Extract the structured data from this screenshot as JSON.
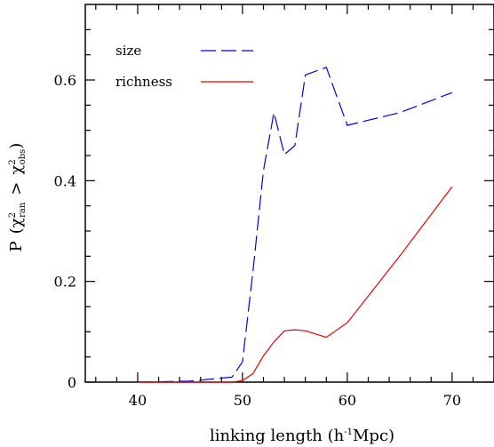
{
  "chart_data": {
    "type": "line",
    "xlabel": {
      "main": "linking length (h",
      "sup": "-1",
      "tail": "Mpc)"
    },
    "ylabel": {
      "p": "P",
      "open": "(",
      "chi": "χ",
      "sup": "2",
      "sub_ran": "ran",
      "gt": ">",
      "sub_obs": "obs",
      "close": ")"
    },
    "xlim": [
      35,
      74
    ],
    "ylim": [
      0,
      0.75
    ],
    "xticks": [
      {
        "value": 40,
        "label": "40"
      },
      {
        "value": 50,
        "label": "50"
      },
      {
        "value": 60,
        "label": "60"
      },
      {
        "value": 70,
        "label": "70"
      }
    ],
    "yticks": [
      {
        "value": 0,
        "label": "0"
      },
      {
        "value": 0.2,
        "label": "0.2"
      },
      {
        "value": 0.4,
        "label": "0.4"
      },
      {
        "value": 0.6,
        "label": "0.6"
      }
    ],
    "legend_position": "top-left",
    "series": [
      {
        "name": "size",
        "color": "#0000ee",
        "dash": "dashed",
        "points": [
          [
            40,
            0.0
          ],
          [
            45,
            0.002
          ],
          [
            49,
            0.01
          ],
          [
            50,
            0.04
          ],
          [
            51,
            0.22
          ],
          [
            52,
            0.42
          ],
          [
            53,
            0.535
          ],
          [
            54,
            0.452
          ],
          [
            55,
            0.47
          ],
          [
            56,
            0.61
          ],
          [
            58,
            0.625
          ],
          [
            60,
            0.51
          ],
          [
            65,
            0.535
          ],
          [
            70,
            0.575
          ]
        ]
      },
      {
        "name": "richness",
        "color": "#ee0000",
        "dash": "solid",
        "points": [
          [
            40,
            0.0
          ],
          [
            45,
            0.0
          ],
          [
            49,
            0.0
          ],
          [
            50,
            0.003
          ],
          [
            51,
            0.017
          ],
          [
            52,
            0.052
          ],
          [
            53,
            0.08
          ],
          [
            54,
            0.102
          ],
          [
            55,
            0.104
          ],
          [
            56,
            0.102
          ],
          [
            58,
            0.089
          ],
          [
            60,
            0.118
          ],
          [
            65,
            0.25
          ],
          [
            70,
            0.388
          ]
        ]
      }
    ]
  }
}
